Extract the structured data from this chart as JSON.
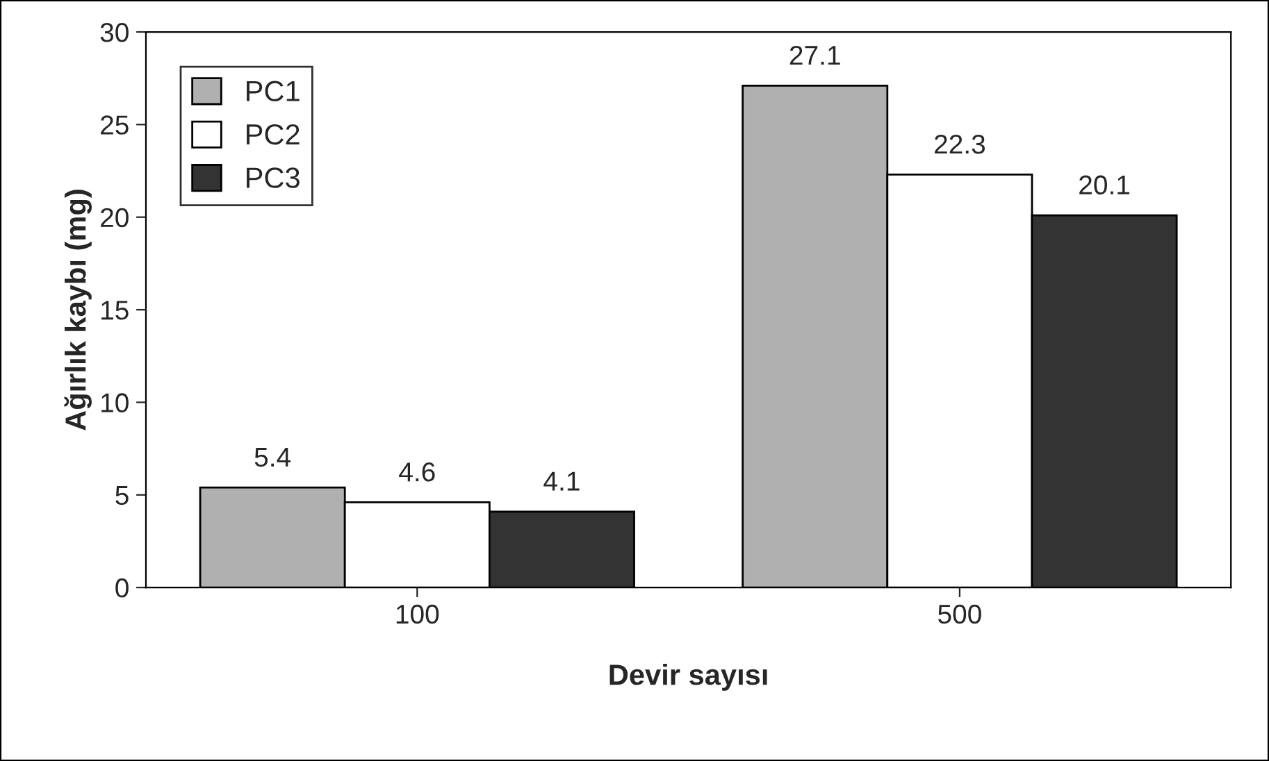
{
  "chart_data": {
    "type": "bar",
    "xlabel": "Devir sayısı",
    "ylabel": "Ağırlık kaybı (mg)",
    "categories": [
      "100",
      "500"
    ],
    "series": [
      {
        "name": "PC1",
        "color": "#b0b0b0",
        "values": [
          5.4,
          27.1
        ]
      },
      {
        "name": "PC2",
        "color": "#ffffff",
        "values": [
          4.6,
          22.3
        ]
      },
      {
        "name": "PC3",
        "color": "#333333",
        "values": [
          4.1,
          20.1
        ]
      }
    ],
    "ylim": [
      0,
      30
    ],
    "yticks": [
      0,
      5,
      10,
      15,
      20,
      25,
      30
    ],
    "data_labels": true,
    "legend": "top left",
    "grid": false
  }
}
